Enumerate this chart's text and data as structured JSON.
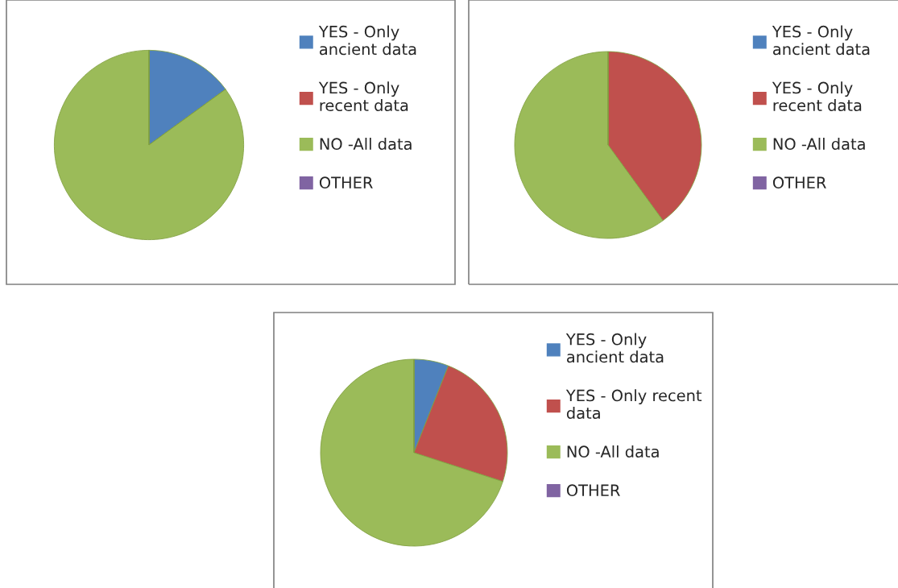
{
  "chart_data": [
    {
      "type": "pie",
      "categories": [
        "YES - Only\nancient data",
        "YES - Only\nrecent data",
        "NO -All data",
        "OTHER"
      ],
      "values": [
        15,
        0,
        85,
        0
      ],
      "colors": [
        "#4f81bd",
        "#c0504d",
        "#9bbb59",
        "#8064a2"
      ],
      "legend": "right"
    },
    {
      "type": "pie",
      "categories": [
        "YES - Only\nancient data",
        "YES - Only\nrecent data",
        "NO -All data",
        "OTHER"
      ],
      "values": [
        0,
        40,
        60,
        0
      ],
      "colors": [
        "#4f81bd",
        "#c0504d",
        "#9bbb59",
        "#8064a2"
      ],
      "legend": "right"
    },
    {
      "type": "pie",
      "categories": [
        "YES - Only\nancient data",
        "YES - Only recent\ndata",
        "NO -All data",
        "OTHER"
      ],
      "values": [
        6,
        24,
        70,
        0
      ],
      "colors": [
        "#4f81bd",
        "#c0504d",
        "#9bbb59",
        "#8064a2"
      ],
      "legend": "right"
    }
  ]
}
